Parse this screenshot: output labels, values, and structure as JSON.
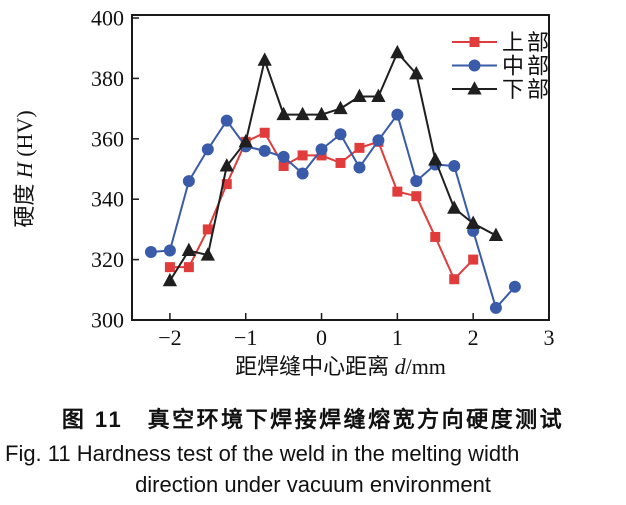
{
  "figure": {
    "caption_cn": "图 11　真空环境下焊接焊缝熔宽方向硬度测试",
    "caption_en_line1": "Fig. 11 Hardness test of the weld in the melting width",
    "caption_en_line2": "direction under vacuum environment"
  },
  "chart_data": {
    "type": "line",
    "title": "",
    "xlabel": {
      "pre": "距焊缝中心距离 ",
      "it": "d",
      "post": "/mm"
    },
    "ylabel": {
      "pre": "硬度 ",
      "it": "H",
      "post": " (HV)"
    },
    "xlim": [
      -2.5,
      3
    ],
    "ylim": [
      300,
      400
    ],
    "xticks": [
      -2,
      -1,
      0,
      1,
      2,
      3
    ],
    "yticks": [
      300,
      320,
      340,
      360,
      380,
      400
    ],
    "grid": false,
    "legend_position": "top-right-inside",
    "series": [
      {
        "id": "upper",
        "name": "上部",
        "marker": "square",
        "color": "#e03c3c",
        "points": [
          [
            -2,
            317.5
          ],
          [
            -1.75,
            317.5
          ],
          [
            -1.5,
            330
          ],
          [
            -1.25,
            345
          ],
          [
            -1,
            359
          ],
          [
            -0.75,
            362
          ],
          [
            -0.5,
            351
          ],
          [
            -0.25,
            354.5
          ],
          [
            0,
            354.5
          ],
          [
            0.25,
            352
          ],
          [
            0.5,
            357
          ],
          [
            0.75,
            359
          ],
          [
            1,
            342.5
          ],
          [
            1.25,
            341
          ],
          [
            1.5,
            327.5
          ],
          [
            1.75,
            313.5
          ],
          [
            2,
            320
          ]
        ]
      },
      {
        "id": "middle",
        "name": "中部",
        "marker": "circle",
        "color": "#3a5ba9",
        "points": [
          [
            -2.25,
            322.5
          ],
          [
            -2,
            323
          ],
          [
            -1.75,
            346
          ],
          [
            -1.5,
            356.5
          ],
          [
            -1.25,
            366
          ],
          [
            -1,
            357.5
          ],
          [
            -0.75,
            356
          ],
          [
            -0.5,
            354
          ],
          [
            -0.25,
            348.5
          ],
          [
            0,
            356.5
          ],
          [
            0.25,
            361.5
          ],
          [
            0.5,
            350.5
          ],
          [
            0.75,
            359.5
          ],
          [
            1,
            368
          ],
          [
            1.25,
            346
          ],
          [
            1.5,
            351.5
          ],
          [
            1.75,
            351
          ],
          [
            2,
            329.5
          ],
          [
            2.3,
            304
          ],
          [
            2.55,
            311
          ]
        ]
      },
      {
        "id": "lower",
        "name": "下部",
        "marker": "triangle",
        "color": "#1f1f1f",
        "points": [
          [
            -2,
            313
          ],
          [
            -1.75,
            323
          ],
          [
            -1.5,
            321.5
          ],
          [
            -1.25,
            351
          ],
          [
            -1,
            359
          ],
          [
            -0.75,
            386
          ],
          [
            -0.5,
            368
          ],
          [
            -0.25,
            368
          ],
          [
            0,
            368
          ],
          [
            0.25,
            370
          ],
          [
            0.5,
            374
          ],
          [
            0.75,
            374
          ],
          [
            1,
            388.5
          ],
          [
            1.25,
            381.5
          ],
          [
            1.5,
            353
          ],
          [
            1.75,
            337
          ],
          [
            2,
            332
          ],
          [
            2.3,
            328
          ]
        ]
      }
    ]
  }
}
